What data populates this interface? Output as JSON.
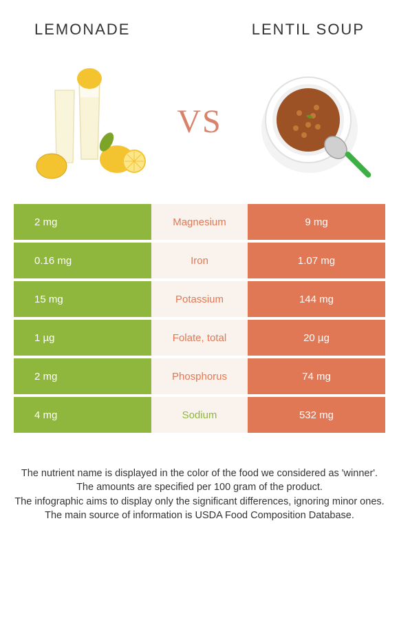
{
  "food1": {
    "name": "Lemonade",
    "color": "#8fb73e"
  },
  "food2": {
    "name": "Lentil soup",
    "color": "#e07856"
  },
  "vs": "VS",
  "middle_bg": "#faf3ed",
  "rows": [
    {
      "left": "2 mg",
      "label": "Magnesium",
      "right": "9 mg",
      "winner": "food2"
    },
    {
      "left": "0.16 mg",
      "label": "Iron",
      "right": "1.07 mg",
      "winner": "food2"
    },
    {
      "left": "15 mg",
      "label": "Potassium",
      "right": "144 mg",
      "winner": "food2"
    },
    {
      "left": "1 µg",
      "label": "Folate, total",
      "right": "20 µg",
      "winner": "food2"
    },
    {
      "left": "2 mg",
      "label": "Phosphorus",
      "right": "74 mg",
      "winner": "food2"
    },
    {
      "left": "4 mg",
      "label": "Sodium",
      "right": "532 mg",
      "winner": "food1"
    }
  ],
  "footer": {
    "line1": "The nutrient name is displayed in the color of the food we considered as 'winner'.",
    "line2": "The amounts are specified per 100 gram of the product.",
    "line3": "The infographic aims to display only the significant differences, ignoring minor ones.",
    "line4": "The main source of information is USDA Food Composition Database."
  }
}
